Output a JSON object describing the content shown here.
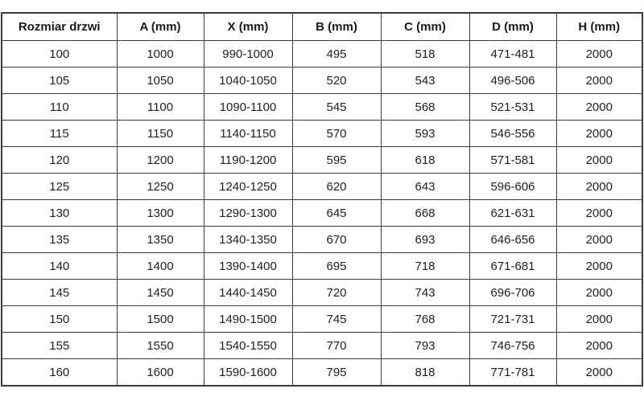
{
  "table": {
    "headers": [
      "Rozmiar drzwi",
      "A (mm)",
      "X (mm)",
      "B (mm)",
      "C (mm)",
      "D (mm)",
      "H (mm)"
    ],
    "rows": [
      [
        "100",
        "1000",
        "990-1000",
        "495",
        "518",
        "471-481",
        "2000"
      ],
      [
        "105",
        "1050",
        "1040-1050",
        "520",
        "543",
        "496-506",
        "2000"
      ],
      [
        "110",
        "1100",
        "1090-1100",
        "545",
        "568",
        "521-531",
        "2000"
      ],
      [
        "115",
        "1150",
        "1140-1150",
        "570",
        "593",
        "546-556",
        "2000"
      ],
      [
        "120",
        "1200",
        "1190-1200",
        "595",
        "618",
        "571-581",
        "2000"
      ],
      [
        "125",
        "1250",
        "1240-1250",
        "620",
        "643",
        "596-606",
        "2000"
      ],
      [
        "130",
        "1300",
        "1290-1300",
        "645",
        "668",
        "621-631",
        "2000"
      ],
      [
        "135",
        "1350",
        "1340-1350",
        "670",
        "693",
        "646-656",
        "2000"
      ],
      [
        "140",
        "1400",
        "1390-1400",
        "695",
        "718",
        "671-681",
        "2000"
      ],
      [
        "145",
        "1450",
        "1440-1450",
        "720",
        "743",
        "696-706",
        "2000"
      ],
      [
        "150",
        "1500",
        "1490-1500",
        "745",
        "768",
        "721-731",
        "2000"
      ],
      [
        "155",
        "1550",
        "1540-1550",
        "770",
        "793",
        "746-756",
        "2000"
      ],
      [
        "160",
        "1600",
        "1590-1600",
        "795",
        "818",
        "771-781",
        "2000"
      ]
    ],
    "colors": {
      "border": "#3c3c3c",
      "text": "#1f1f1f",
      "background": "#ffffff"
    }
  }
}
